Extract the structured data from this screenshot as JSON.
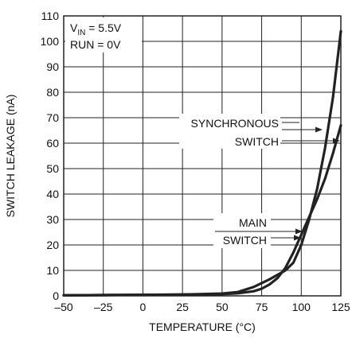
{
  "chart_data": {
    "type": "line",
    "xlabel": "TEMPERATURE (°C)",
    "ylabel": "SWITCH LEAKAGE (nA)",
    "xlim": [
      -50,
      125
    ],
    "ylim": [
      0,
      110
    ],
    "xticks": [
      -50,
      -25,
      0,
      25,
      50,
      75,
      100,
      125
    ],
    "xtick_labels": [
      "–50",
      "–25",
      "0",
      "25",
      "50",
      "75",
      "100",
      "125"
    ],
    "yticks": [
      0,
      10,
      20,
      30,
      40,
      50,
      60,
      70,
      80,
      90,
      100,
      110
    ],
    "ytick_labels": [
      "0",
      "10",
      "20",
      "30",
      "40",
      "50",
      "60",
      "70",
      "80",
      "90",
      "100",
      "110"
    ],
    "grid": true,
    "legend": "none",
    "line_color": "#222222",
    "conditions": {
      "vin_prefix": "V",
      "vin_subscript": "IN",
      "vin_value": " = 5.5V",
      "run": "RUN = 0V"
    },
    "series": [
      {
        "label_lines": [
          "SYNCHRONOUS",
          "SWITCH"
        ],
        "x": [
          -50,
          -25,
          0,
          25,
          50,
          60,
          70,
          80,
          90,
          95,
          100,
          105,
          110,
          115,
          120,
          125
        ],
        "y": [
          0.2,
          0.3,
          0.4,
          0.5,
          0.9,
          1.5,
          3.5,
          6.5,
          10,
          13,
          20,
          30,
          42,
          58,
          78,
          104
        ]
      },
      {
        "label_lines": [
          "MAIN",
          "SWITCH"
        ],
        "x": [
          -50,
          -25,
          0,
          25,
          50,
          60,
          70,
          75,
          80,
          85,
          90,
          95,
          100,
          105,
          110,
          115,
          120,
          125
        ],
        "y": [
          0.2,
          0.3,
          0.4,
          0.5,
          0.7,
          1.0,
          1.8,
          2.8,
          4.5,
          7,
          11,
          17,
          24,
          31,
          38,
          46,
          56,
          67
        ]
      }
    ]
  }
}
